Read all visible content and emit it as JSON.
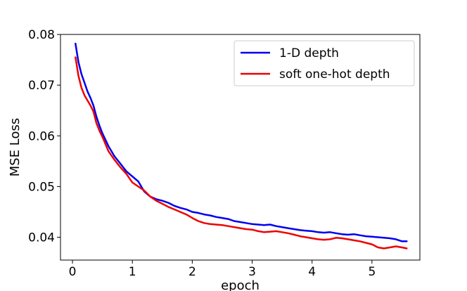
{
  "chart_data": {
    "type": "line",
    "xlabel": "epoch",
    "ylabel": "MSE Loss",
    "xlim": [
      -0.2,
      5.8
    ],
    "ylim": [
      0.0355,
      0.08
    ],
    "xticks": [
      0,
      1,
      2,
      3,
      4,
      5
    ],
    "xtick_labels": [
      "0",
      "1",
      "2",
      "3",
      "4",
      "5"
    ],
    "yticks": [
      0.04,
      0.05,
      0.06,
      0.07,
      0.08
    ],
    "ytick_labels": [
      "0.04",
      "0.05",
      "0.06",
      "0.07",
      "0.08"
    ],
    "grid": false,
    "legend_position": "top-right",
    "series": [
      {
        "name": "1-D depth",
        "color": "#0000ee",
        "x": [
          0.05,
          0.1,
          0.15,
          0.2,
          0.25,
          0.3,
          0.35,
          0.4,
          0.45,
          0.5,
          0.6,
          0.7,
          0.8,
          0.9,
          1.0,
          1.1,
          1.2,
          1.3,
          1.4,
          1.5,
          1.6,
          1.7,
          1.8,
          1.9,
          2.0,
          2.1,
          2.2,
          2.3,
          2.4,
          2.5,
          2.6,
          2.7,
          2.8,
          2.9,
          3.0,
          3.1,
          3.2,
          3.3,
          3.4,
          3.5,
          3.6,
          3.7,
          3.8,
          3.9,
          4.0,
          4.1,
          4.2,
          4.3,
          4.4,
          4.5,
          4.6,
          4.7,
          4.8,
          4.9,
          5.0,
          5.1,
          5.2,
          5.3,
          5.4,
          5.5,
          5.58
        ],
        "values": [
          0.0782,
          0.0745,
          0.0722,
          0.0705,
          0.0688,
          0.0675,
          0.066,
          0.0638,
          0.062,
          0.0605,
          0.058,
          0.056,
          0.0545,
          0.053,
          0.052,
          0.051,
          0.049,
          0.048,
          0.0475,
          0.0472,
          0.0468,
          0.0462,
          0.0458,
          0.0455,
          0.045,
          0.0448,
          0.0445,
          0.0443,
          0.044,
          0.0438,
          0.0436,
          0.0432,
          0.043,
          0.0428,
          0.0426,
          0.0425,
          0.0424,
          0.0425,
          0.0422,
          0.042,
          0.0418,
          0.0416,
          0.0414,
          0.0413,
          0.0412,
          0.041,
          0.0409,
          0.041,
          0.0408,
          0.0406,
          0.0405,
          0.0406,
          0.0404,
          0.0402,
          0.0401,
          0.04,
          0.0399,
          0.0398,
          0.0396,
          0.0392,
          0.0392
        ]
      },
      {
        "name": "soft one-hot depth",
        "color": "#ee0000",
        "x": [
          0.05,
          0.1,
          0.15,
          0.2,
          0.25,
          0.3,
          0.35,
          0.4,
          0.45,
          0.5,
          0.6,
          0.7,
          0.8,
          0.9,
          1.0,
          1.1,
          1.2,
          1.3,
          1.4,
          1.5,
          1.6,
          1.7,
          1.8,
          1.9,
          2.0,
          2.1,
          2.2,
          2.3,
          2.4,
          2.5,
          2.6,
          2.7,
          2.8,
          2.9,
          3.0,
          3.1,
          3.2,
          3.3,
          3.4,
          3.5,
          3.6,
          3.7,
          3.8,
          3.9,
          4.0,
          4.1,
          4.2,
          4.3,
          4.4,
          4.5,
          4.6,
          4.7,
          4.8,
          4.9,
          5.0,
          5.1,
          5.2,
          5.3,
          5.4,
          5.5,
          5.58
        ],
        "values": [
          0.0755,
          0.0718,
          0.0695,
          0.068,
          0.067,
          0.066,
          0.0648,
          0.0625,
          0.061,
          0.0598,
          0.057,
          0.0553,
          0.0538,
          0.0525,
          0.0508,
          0.05,
          0.0492,
          0.048,
          0.0472,
          0.0466,
          0.046,
          0.0455,
          0.045,
          0.0445,
          0.0438,
          0.0432,
          0.0428,
          0.0426,
          0.0425,
          0.0424,
          0.0422,
          0.042,
          0.0418,
          0.0416,
          0.0415,
          0.0412,
          0.041,
          0.0411,
          0.0412,
          0.041,
          0.0408,
          0.0405,
          0.0402,
          0.04,
          0.0398,
          0.0396,
          0.0395,
          0.0396,
          0.0399,
          0.0398,
          0.0396,
          0.0394,
          0.0392,
          0.0389,
          0.0386,
          0.038,
          0.0378,
          0.038,
          0.0382,
          0.038,
          0.0378
        ]
      }
    ]
  }
}
